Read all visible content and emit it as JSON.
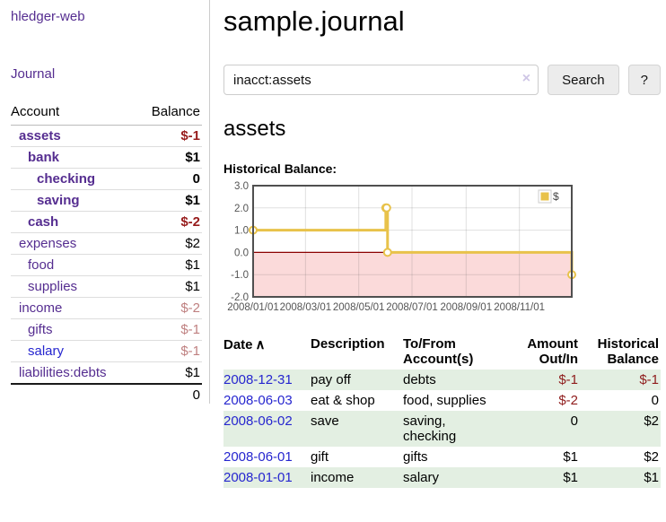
{
  "app": {
    "title": "hledger-web",
    "nav_journal": "Journal"
  },
  "sidebar": {
    "col_account": "Account",
    "col_balance": "Balance",
    "accounts": [
      {
        "name": "assets",
        "balance": "$-1"
      },
      {
        "name": "bank",
        "balance": "$1"
      },
      {
        "name": "checking",
        "balance": "0"
      },
      {
        "name": "saving",
        "balance": "$1"
      },
      {
        "name": "cash",
        "balance": "$-2"
      },
      {
        "name": "expenses",
        "balance": "$2"
      },
      {
        "name": "food",
        "balance": "$1"
      },
      {
        "name": "supplies",
        "balance": "$1"
      },
      {
        "name": "income",
        "balance": "$-2"
      },
      {
        "name": "gifts",
        "balance": "$-1"
      },
      {
        "name": "salary",
        "balance": "$-1"
      },
      {
        "name": "liabilities:debts",
        "balance": "$1"
      }
    ],
    "total": "0"
  },
  "header": {
    "title": "sample.journal"
  },
  "search": {
    "value": "inacct:assets",
    "clear_icon": "×",
    "button_label": "Search",
    "help_label": "?"
  },
  "account_page": {
    "heading": "assets",
    "chart_label": "Historical Balance:"
  },
  "chart_data": {
    "type": "line",
    "step": true,
    "title": "Historical Balance:",
    "legend": "$",
    "legend_position": "top-right",
    "series": [
      {
        "name": "$",
        "x": [
          "2008-01-01",
          "2008-06-01",
          "2008-06-02",
          "2008-06-03",
          "2008-12-31"
        ],
        "values": [
          1,
          2,
          2,
          0,
          -1
        ]
      }
    ],
    "x_ticks": [
      "2008/01/01",
      "2008/03/01",
      "2008/05/01",
      "2008/07/01",
      "2008/09/01",
      "2008/11/01"
    ],
    "y_ticks": [
      "3.0",
      "2.0",
      "1.0",
      "0.0",
      "-1.0",
      "-2.0"
    ],
    "ylim": [
      -2,
      3
    ],
    "xrange": [
      "2008-01-01",
      "2008-12-31"
    ],
    "grid": true,
    "line_color": "#E8C24A",
    "marker_fill": "#ffffff",
    "negative_region_color": "#fbdada",
    "zero_line_color": "#8b0000",
    "border_color": "#4f4f4f",
    "tick_label_color": "#545454"
  },
  "register": {
    "sort_indicator": "∧",
    "columns": {
      "date": "Date",
      "description": "Description",
      "accounts": "To/From Account(s)",
      "amount": "Amount Out/In",
      "balance": "Historical Balance"
    },
    "rows": [
      {
        "date": "2008-12-31",
        "description": "pay off",
        "accounts": "debts",
        "amount": "$-1",
        "balance": "$-1"
      },
      {
        "date": "2008-06-03",
        "description": "eat & shop",
        "accounts": "food, supplies",
        "amount": "$-2",
        "balance": "0"
      },
      {
        "date": "2008-06-02",
        "description": "save",
        "accounts": "saving, checking",
        "amount": "0",
        "balance": "$2"
      },
      {
        "date": "2008-06-01",
        "description": "gift",
        "accounts": "gifts",
        "amount": "$1",
        "balance": "$2"
      },
      {
        "date": "2008-01-01",
        "description": "income",
        "accounts": "salary",
        "amount": "$1",
        "balance": "$1"
      }
    ]
  },
  "colors": {
    "link_purple": "#552d90",
    "link_blue": "#2626cf",
    "negative_strong": "#971c1c",
    "negative_muted": "#bf8080",
    "negative_table": "#8f1c1c",
    "row_green": "#e3efe2",
    "button_bg": "#ececec"
  }
}
